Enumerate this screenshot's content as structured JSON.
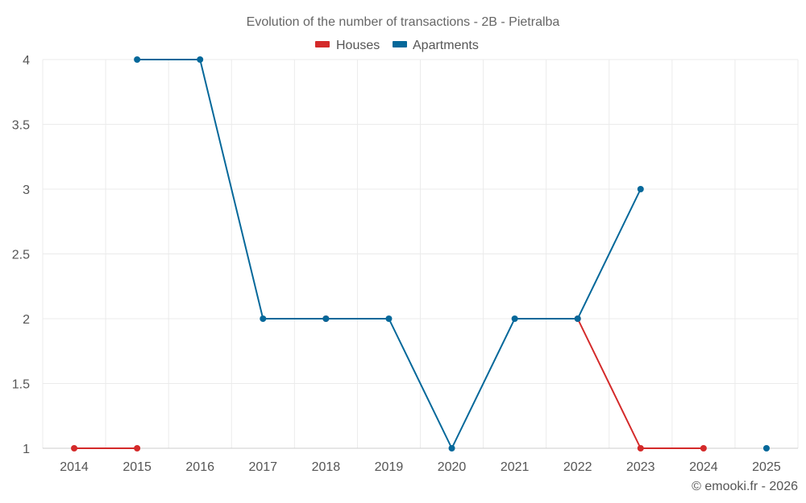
{
  "chart_data": {
    "type": "line",
    "title": "Evolution of the number of transactions - 2B - Pietralba",
    "xlabel": "",
    "ylabel": "",
    "categories": [
      "2014",
      "2015",
      "2016",
      "2017",
      "2018",
      "2019",
      "2020",
      "2021",
      "2022",
      "2023",
      "2024",
      "2025"
    ],
    "ylim": [
      1,
      4
    ],
    "yticks": [
      "1",
      "1.5",
      "2",
      "2.5",
      "3",
      "3.5",
      "4"
    ],
    "grid": true,
    "legend": "top-center",
    "series": [
      {
        "name": "Houses",
        "color": "#d42a2a",
        "values": [
          1,
          1,
          null,
          null,
          2,
          null,
          null,
          null,
          2,
          1,
          1,
          null
        ]
      },
      {
        "name": "Apartments",
        "color": "#05689a",
        "values": [
          null,
          4,
          4,
          2,
          2,
          2,
          1,
          2,
          2,
          3,
          null,
          1
        ]
      }
    ],
    "credit": "© emooki.fr - 2026"
  }
}
